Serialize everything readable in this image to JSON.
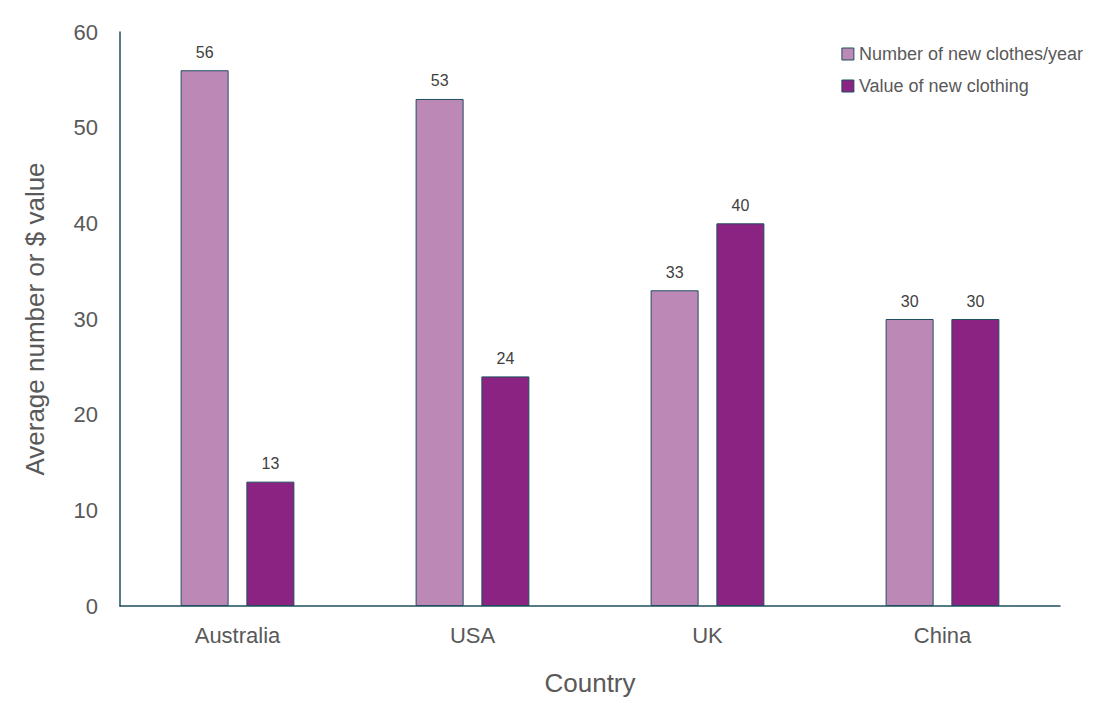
{
  "chart_data": {
    "type": "bar",
    "x_label": "Country",
    "y_label": "Average number or $ value",
    "categories": [
      "Australia",
      "USA",
      "UK",
      "China"
    ],
    "series": [
      {
        "name": "Number of new clothes/year",
        "color": "#bc88b6",
        "values": [
          56,
          53,
          33,
          30
        ]
      },
      {
        "name": "Value of new clothing",
        "color": "#8b2382",
        "values": [
          13,
          24,
          40,
          30
        ]
      }
    ],
    "ylim": [
      0,
      60
    ],
    "yticks": [
      0,
      10,
      20,
      30,
      40,
      50,
      60
    ],
    "grid": false,
    "legend": "upper right",
    "data_labels": true
  }
}
